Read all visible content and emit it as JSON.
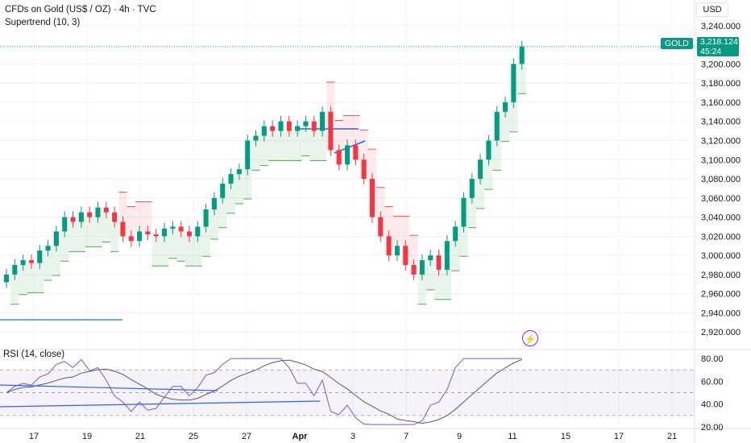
{
  "legend": {
    "symbol": "CFDs on Gold (US$ / OZ) · 4h · TVC",
    "indicator": "Supertrend (10, 3)"
  },
  "rsi": {
    "label": "RSI (14, close)"
  },
  "currency": "USD",
  "price_tag": {
    "symbol": "GOLD",
    "price": "3,218.124",
    "countdown": "45:24"
  },
  "colors": {
    "up": "#089981",
    "down": "#f23645",
    "rsi": "#7e57c2",
    "supertrend_up": "#4caf50",
    "supertrend_down": "#ef5350",
    "trendline": "#2962ff"
  },
  "price_axis": [
    "3,240.000",
    "3,200.000",
    "3,180.000",
    "3,160.000",
    "3,140.000",
    "3,120.000",
    "3,100.000",
    "3,080.000",
    "3,060.000",
    "3,040.000",
    "3,020.000",
    "3,000.000",
    "2,980.000",
    "2,960.000",
    "2,940.000",
    "2,920.000"
  ],
  "rsi_axis": [
    "80.00",
    "60.00",
    "40.00",
    "20.00"
  ],
  "time_axis": [
    "17",
    "19",
    "21",
    "25",
    "27",
    "Apr",
    "3",
    "7",
    "9",
    "11",
    "15",
    "17",
    "21"
  ],
  "chart_data": {
    "type": "candlestick",
    "title": "CFDs on Gold (US$ / OZ) · 4h · TVC",
    "ylabel": "",
    "ylim": [
      2905,
      3250
    ],
    "rsi_ylim": [
      20,
      85
    ],
    "rsi_levels": [
      70,
      50,
      30
    ],
    "x": [
      "17",
      "19",
      "21",
      "25",
      "27",
      "Apr",
      "3",
      "7",
      "9",
      "11",
      "15",
      "17",
      "21"
    ],
    "closes": [
      2980,
      2990,
      2995,
      2992,
      3005,
      3010,
      3025,
      3040,
      3035,
      3045,
      3040,
      3050,
      3045,
      3035,
      3020,
      3015,
      3025,
      3022,
      3020,
      3028,
      3030,
      3025,
      3020,
      3030,
      3048,
      3060,
      3075,
      3085,
      3090,
      3120,
      3125,
      3135,
      3130,
      3140,
      3130,
      3135,
      3140,
      3130,
      3150,
      3110,
      3095,
      3115,
      3100,
      3080,
      3040,
      3020,
      3000,
      3010,
      2990,
      2980,
      2995,
      3000,
      2985,
      3015,
      3030,
      3060,
      3080,
      3100,
      3120,
      3150,
      3160,
      3200,
      3218.124
    ],
    "last_price": 3218.124
  }
}
